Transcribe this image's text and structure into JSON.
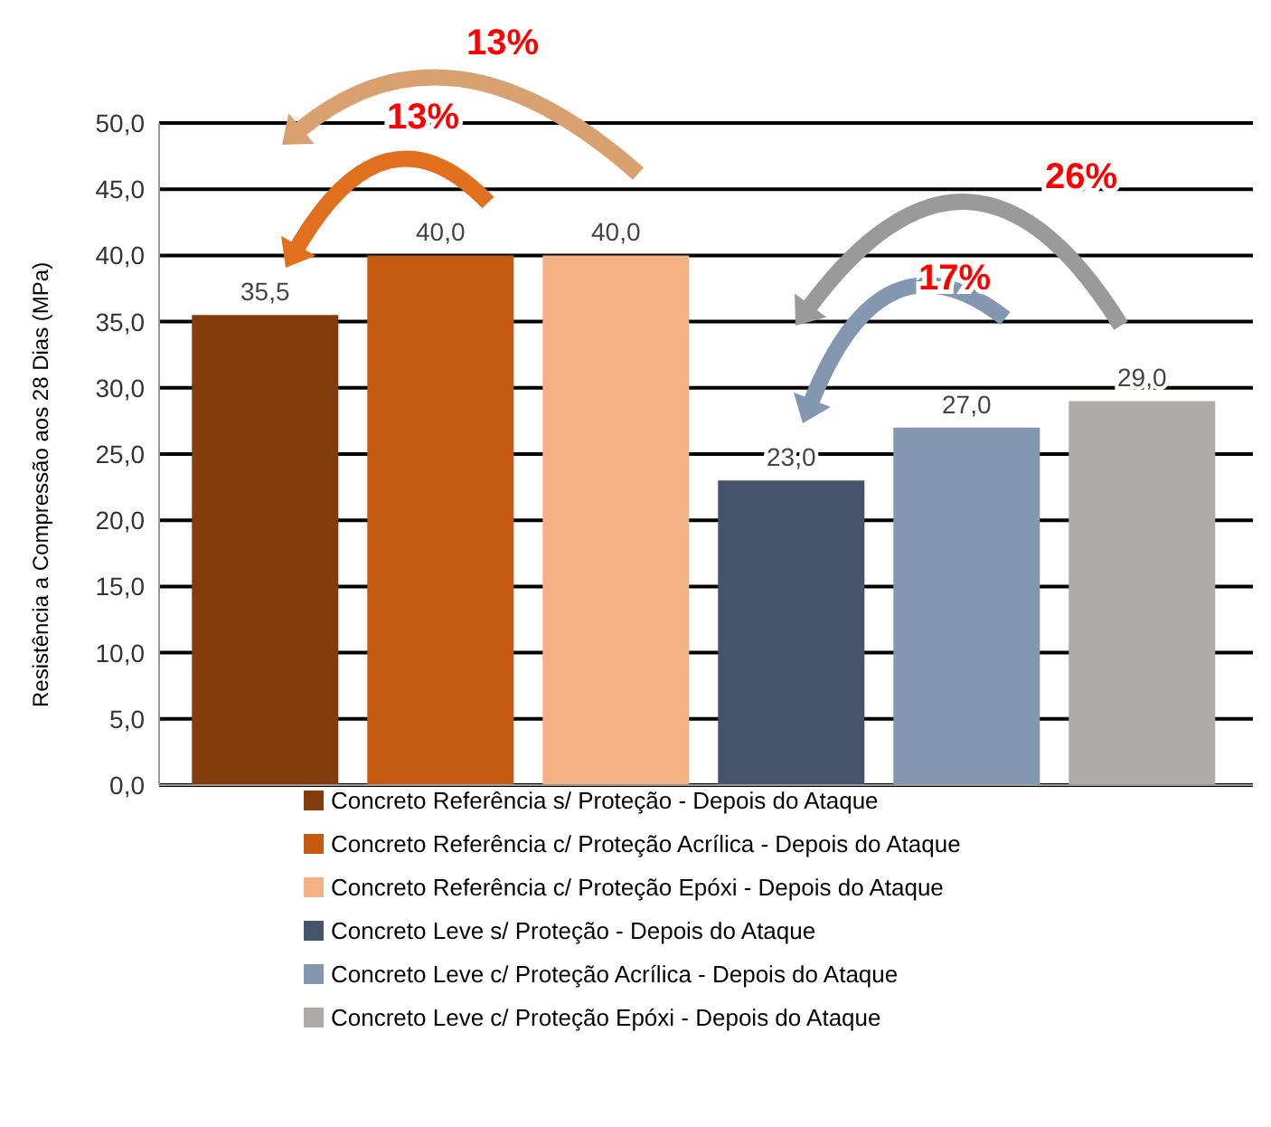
{
  "chart_data": {
    "type": "bar",
    "ylabel": "Resistência a Compressão aos 28 Dias (MPa)",
    "categories": [
      null
    ],
    "ylim": [
      0,
      50
    ],
    "yticks": [
      {
        "value": 0,
        "label": "0,0"
      },
      {
        "value": 5,
        "label": "5,0"
      },
      {
        "value": 10,
        "label": "10,0"
      },
      {
        "value": 15,
        "label": "15,0"
      },
      {
        "value": 20,
        "label": "20,0"
      },
      {
        "value": 25,
        "label": "25,0"
      },
      {
        "value": 30,
        "label": "30,0"
      },
      {
        "value": 35,
        "label": "35,0"
      },
      {
        "value": 40,
        "label": "40,0"
      },
      {
        "value": 45,
        "label": "45,0"
      },
      {
        "value": 50,
        "label": "50,0"
      }
    ],
    "grid": "y",
    "legend": "bottom",
    "annotations": [
      "13%",
      "13%",
      "26%",
      "17%"
    ],
    "series": [
      {
        "name": "Concreto Referência s/ Proteção - Depois do Ataque",
        "color": "#843c0c",
        "values": [
          35.5
        ],
        "value_labels": [
          "35,5"
        ]
      },
      {
        "name": "Concreto Referência c/ Proteção Acrílica - Depois do Ataque",
        "color": "#c55a11",
        "values": [
          40.0
        ],
        "value_labels": [
          "40,0"
        ]
      },
      {
        "name": "Concreto Referência c/ Proteção Epóxi - Depois do Ataque",
        "color": "#f4b183",
        "values": [
          40.0
        ],
        "value_labels": [
          "40,0"
        ]
      },
      {
        "name": "Concreto Leve s/ Proteção - Depois do Ataque",
        "color": "#44546a",
        "values": [
          23.0
        ],
        "value_labels": [
          "23,0"
        ]
      },
      {
        "name": "Concreto Leve c/ Proteção Acrílica - Depois do Ataque",
        "color": "#8497b0",
        "values": [
          27.0
        ],
        "value_labels": [
          "27,0"
        ]
      },
      {
        "name": "Concreto Leve c/ Proteção Epóxi - Depois do Ataque",
        "color": "#aeaaaa",
        "values": [
          29.0
        ],
        "value_labels": [
          "29,0"
        ]
      }
    ]
  }
}
